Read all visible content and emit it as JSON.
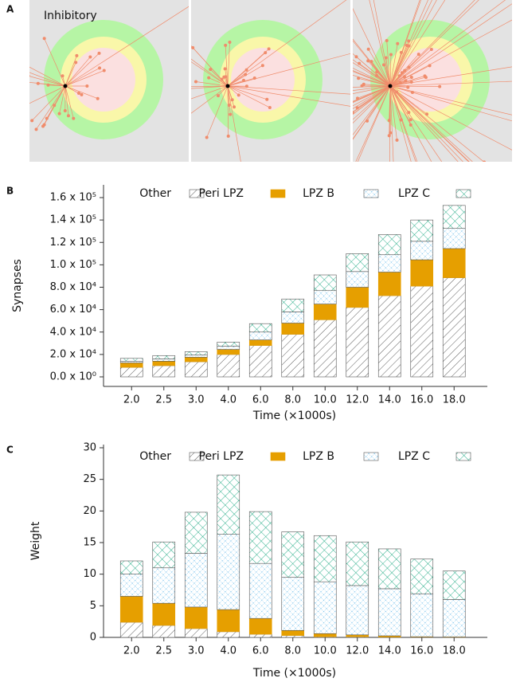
{
  "panel_labels": [
    "A",
    "B",
    "C"
  ],
  "panel_a": {
    "title": "Inhibitory"
  },
  "chart_data": [
    {
      "type": "bar",
      "stacked": true,
      "ylabel": "Synapses",
      "xlabel": "Time (×1000s)",
      "legend": "top",
      "categories": [
        "2.0",
        "2.5",
        "3.0",
        "4.0",
        "6.0",
        "8.0",
        "10.0",
        "12.0",
        "14.0",
        "16.0",
        "18.0"
      ],
      "ylim": [
        0,
        160000
      ],
      "yticks": [
        {
          "value": 0,
          "label": "0.0 x 10⁰"
        },
        {
          "value": 20000,
          "label": "2.0 x 10⁴"
        },
        {
          "value": 40000,
          "label": "4.0 x 10⁴"
        },
        {
          "value": 60000,
          "label": "6.0 x 10⁴"
        },
        {
          "value": 80000,
          "label": "8.0 x 10⁴"
        },
        {
          "value": 100000,
          "label": "1.0 x 10⁵"
        },
        {
          "value": 120000,
          "label": "1.2 x 10⁵"
        },
        {
          "value": 140000,
          "label": "1.4 x 10⁵"
        },
        {
          "value": 160000,
          "label": "1.6 x 10⁵"
        }
      ],
      "series": [
        {
          "name": "Other",
          "color": "#333333",
          "pattern": "diagonal",
          "values": [
            8500,
            10000,
            13500,
            20000,
            28000,
            38000,
            51000,
            62000,
            72500,
            81000,
            88500
          ]
        },
        {
          "name": "Peri LPZ",
          "color": "#e69f00",
          "pattern": "solid",
          "values": [
            4000,
            4000,
            4000,
            4500,
            5000,
            10000,
            14000,
            18000,
            21000,
            23500,
            26000
          ]
        },
        {
          "name": "LPZ B",
          "color": "#56b4e9",
          "pattern": "fine-cross",
          "values": [
            1500,
            2000,
            2000,
            3000,
            7000,
            10000,
            12000,
            14000,
            15500,
            16500,
            18000
          ]
        },
        {
          "name": "LPZ C",
          "color": "#009e73",
          "pattern": "cross",
          "values": [
            2500,
            3000,
            3000,
            3500,
            7500,
            11500,
            14000,
            16000,
            18000,
            19000,
            20500
          ]
        }
      ]
    },
    {
      "type": "bar",
      "stacked": true,
      "ylabel": "Weight",
      "xlabel": "Time (×1000s)",
      "legend": "top",
      "categories": [
        "2.0",
        "2.5",
        "3.0",
        "4.0",
        "6.0",
        "8.0",
        "10.0",
        "12.0",
        "14.0",
        "16.0",
        "18.0"
      ],
      "ylim": [
        0,
        30
      ],
      "yticks": [
        0,
        5,
        10,
        15,
        20,
        25,
        30
      ],
      "series": [
        {
          "name": "Other",
          "color": "#333333",
          "pattern": "diagonal",
          "values": [
            2.4,
            1.9,
            1.4,
            0.9,
            0.5,
            0.3,
            0.1,
            0.1,
            0.05,
            0.05,
            0.03
          ]
        },
        {
          "name": "Peri LPZ",
          "color": "#e69f00",
          "pattern": "solid",
          "values": [
            4.1,
            3.5,
            3.4,
            3.5,
            2.5,
            0.8,
            0.5,
            0.3,
            0.2,
            0.05,
            0.04
          ]
        },
        {
          "name": "LPZ B",
          "color": "#56b4e9",
          "pattern": "fine-cross",
          "values": [
            3.5,
            5.6,
            8.5,
            11.9,
            8.7,
            8.4,
            8.2,
            7.8,
            7.45,
            6.8,
            5.93
          ]
        },
        {
          "name": "LPZ C",
          "color": "#009e73",
          "pattern": "cross",
          "values": [
            2.1,
            4.1,
            6.5,
            9.4,
            8.2,
            7.2,
            7.3,
            6.9,
            6.3,
            5.5,
            4.5
          ]
        }
      ]
    }
  ]
}
